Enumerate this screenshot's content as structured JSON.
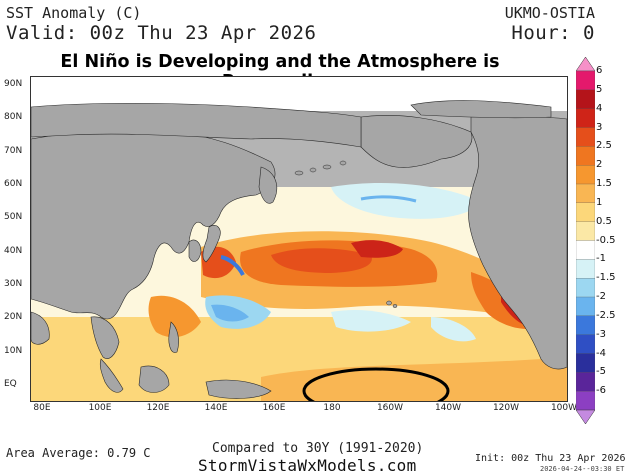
{
  "header": {
    "variable": "SST Anomaly (C)",
    "valid": "Valid: 00z Thu 23 Apr 2026",
    "model": "UKMO-OSTIA",
    "hour": "Hour: 0"
  },
  "headline": "El Niño is Developing and the Atmosphere is Responding",
  "map": {
    "lat_labels": [
      "90N",
      "80N",
      "70N",
      "60N",
      "50N",
      "40N",
      "30N",
      "20N",
      "10N",
      "EQ"
    ],
    "lon_labels": [
      "80E",
      "100E",
      "120E",
      "140E",
      "160E",
      "180",
      "160W",
      "140W",
      "120W",
      "100W"
    ],
    "annotation": "circle-around-central-equatorial-pacific",
    "colors": {
      "land": "#a6a6a6",
      "neutral": "#ffffff",
      "warm_05": "#fbe8a6",
      "warm_1": "#fcd77a",
      "warm_15": "#f9b653",
      "warm_2": "#f6972f",
      "warm_25": "#ef7620",
      "warm_3": "#e54f1b",
      "warm_4": "#cc2418",
      "cool_05": "#d6f2f6",
      "cool_1": "#9cd7f1",
      "cool_15": "#6ab4ee"
    }
  },
  "colorbar": {
    "ticks": [
      "6",
      "5",
      "4",
      "3",
      "2.5",
      "2",
      "1.5",
      "1",
      "0.5",
      "-0.5",
      "-1",
      "-1.5",
      "-2",
      "-2.5",
      "-3",
      "-4",
      "-5",
      "-6"
    ],
    "colors": [
      "#f690c8",
      "#e4196c",
      "#b4141a",
      "#cf2418",
      "#e54f1b",
      "#ef7620",
      "#f6972f",
      "#f9b653",
      "#fcd77a",
      "#fbe8a6",
      "#ffffff",
      "#d6f2f6",
      "#9cd7f1",
      "#6ab4ee",
      "#3b78dc",
      "#2f4fc4",
      "#2a2f9c",
      "#5a259a",
      "#8c3fc2",
      "#c48ae0"
    ]
  },
  "footer": {
    "area_average": "Area Average: 0.79 C",
    "compared": "Compared to 30Y (1991-2020)",
    "site": "StormVistaWxModels.com",
    "init": "Init: 00z Thu 23 Apr 2026",
    "stamp": "2026-04-24--03:30 ET"
  }
}
